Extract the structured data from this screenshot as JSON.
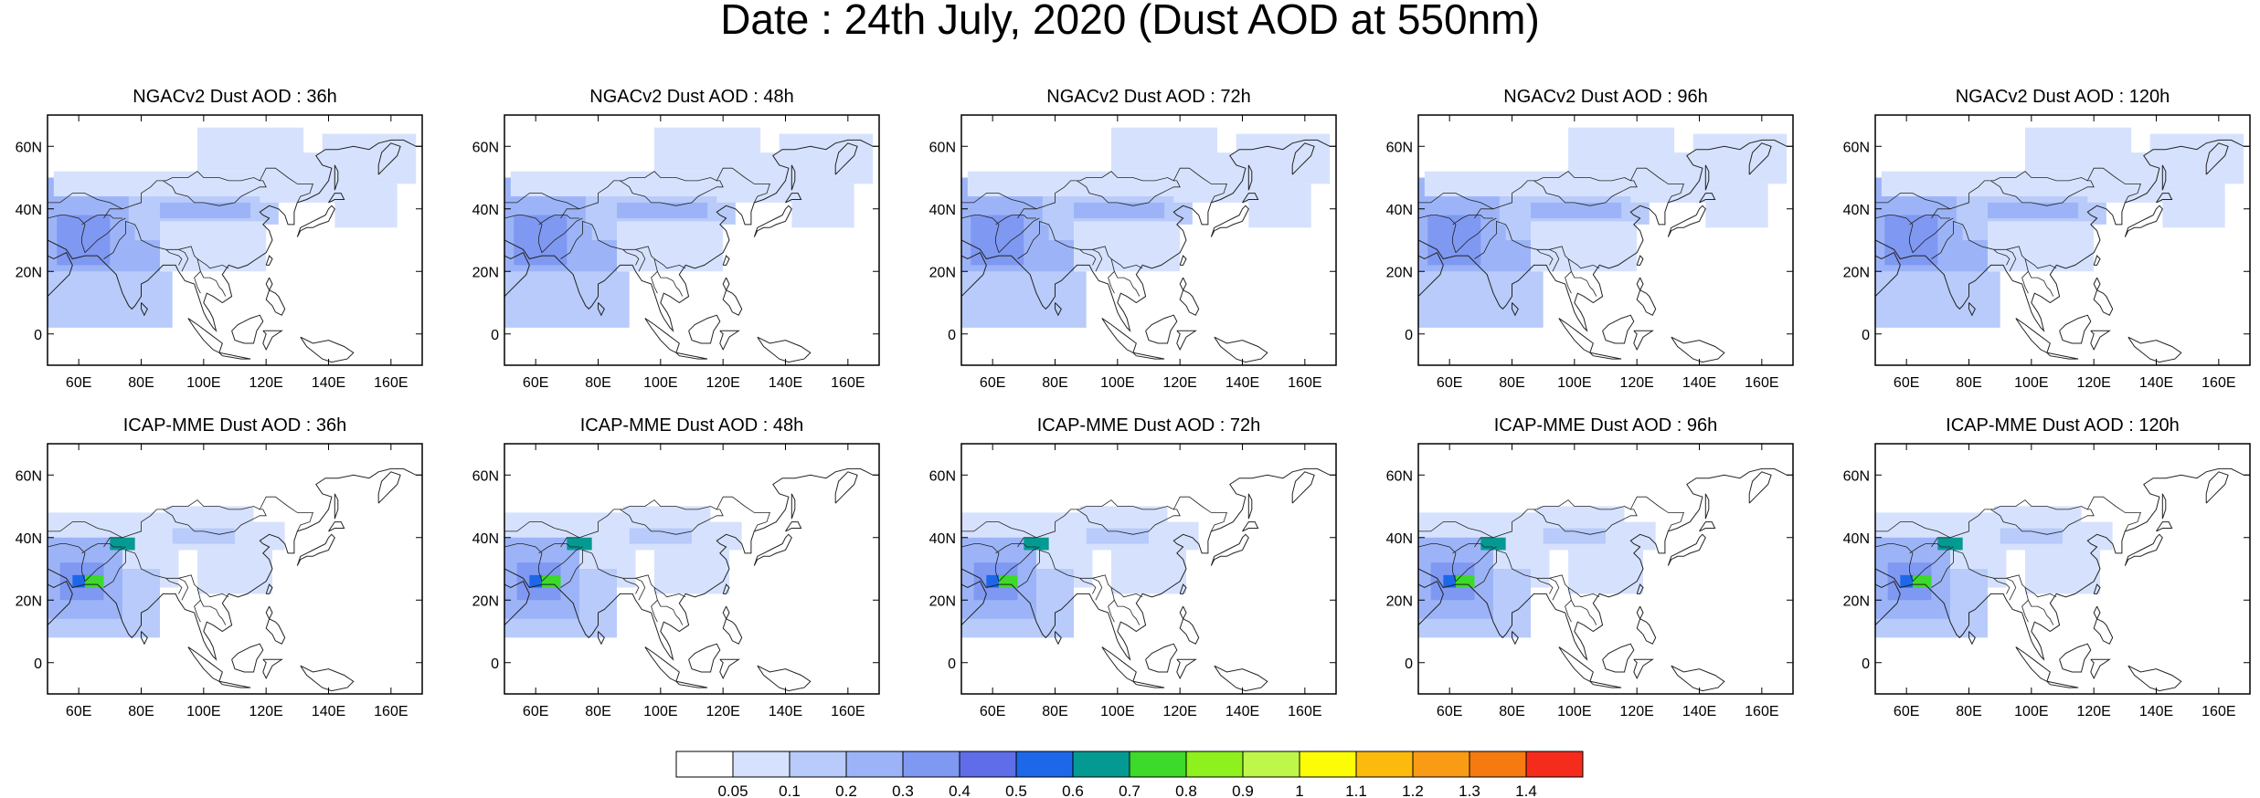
{
  "title": "Date : 24th July, 2020 (Dust AOD at 550nm)",
  "axes": {
    "y_ticks": [
      "60N",
      "40N",
      "20N",
      "0"
    ],
    "y_values": [
      60,
      40,
      20,
      0
    ],
    "x_ticks": [
      "60E",
      "80E",
      "100E",
      "120E",
      "140E",
      "160E"
    ],
    "x_values": [
      60,
      80,
      100,
      120,
      140,
      160
    ],
    "lon_range": [
      50,
      170
    ],
    "lat_range": [
      -10,
      70
    ]
  },
  "panels": [
    {
      "title": "NGACv2 Dust AOD : 36h",
      "model": "ngac",
      "lead": 36
    },
    {
      "title": "NGACv2 Dust AOD : 48h",
      "model": "ngac",
      "lead": 48
    },
    {
      "title": "NGACv2 Dust AOD : 72h",
      "model": "ngac",
      "lead": 72
    },
    {
      "title": "NGACv2 Dust AOD : 96h",
      "model": "ngac",
      "lead": 96
    },
    {
      "title": "NGACv2 Dust AOD : 120h",
      "model": "ngac",
      "lead": 120
    },
    {
      "title": "ICAP-MME Dust AOD : 36h",
      "model": "icap",
      "lead": 36
    },
    {
      "title": "ICAP-MME Dust AOD : 48h",
      "model": "icap",
      "lead": 48
    },
    {
      "title": "ICAP-MME Dust AOD : 72h",
      "model": "icap",
      "lead": 72
    },
    {
      "title": "ICAP-MME Dust AOD : 96h",
      "model": "icap",
      "lead": 96
    },
    {
      "title": "ICAP-MME Dust AOD : 120h",
      "model": "icap",
      "lead": 120
    }
  ],
  "colorbar": {
    "colors": [
      "#ffffff",
      "#d6e2fd",
      "#b8cbfa",
      "#9cb4f7",
      "#7f98f2",
      "#5f6ee8",
      "#1d68e8",
      "#049a92",
      "#3dd92b",
      "#8ef01c",
      "#bff64a",
      "#fcfc06",
      "#fcbb0c",
      "#f99b15",
      "#f57a10",
      "#f52c1c"
    ],
    "labels": [
      "0.05",
      "0.1",
      "0.2",
      "0.3",
      "0.4",
      "0.5",
      "0.6",
      "0.7",
      "0.8",
      "0.9",
      "1",
      "1.1",
      "1.2",
      "1.3",
      "1.4"
    ]
  },
  "regions": {
    "ngac": [
      {
        "lon": [
          50,
          86
        ],
        "lat": [
          18,
          50
        ],
        "level": 3
      },
      {
        "lon": [
          50,
          75
        ],
        "lat": [
          10,
          30
        ],
        "level": 3
      },
      {
        "lon": [
          53,
          70
        ],
        "lat": [
          22,
          38
        ],
        "level": 4
      },
      {
        "lon": [
          50,
          90
        ],
        "lat": [
          2,
          20
        ],
        "level": 2
      },
      {
        "lon": [
          76,
          124
        ],
        "lat": [
          35,
          45
        ],
        "level": 2
      },
      {
        "lon": [
          78,
          100
        ],
        "lat": [
          30,
          38
        ],
        "level": 2
      },
      {
        "lon": [
          86,
          115
        ],
        "lat": [
          37,
          42
        ],
        "level": 3
      },
      {
        "lon": [
          52,
          120
        ],
        "lat": [
          44,
          52
        ],
        "level": 1
      },
      {
        "lon": [
          86,
          120
        ],
        "lat": [
          20,
          36
        ],
        "level": 1
      },
      {
        "lon": [
          98,
          132
        ],
        "lat": [
          52,
          66
        ],
        "level": 1
      },
      {
        "lon": [
          118,
          142
        ],
        "lat": [
          42,
          58
        ],
        "level": 1
      },
      {
        "lon": [
          138,
          168
        ],
        "lat": [
          48,
          64
        ],
        "level": 1
      },
      {
        "lon": [
          142,
          162
        ],
        "lat": [
          34,
          48
        ],
        "level": 1
      }
    ],
    "icap": [
      {
        "lon": [
          50,
          92
        ],
        "lat": [
          24,
          48
        ],
        "level": 1
      },
      {
        "lon": [
          50,
          86
        ],
        "lat": [
          8,
          30
        ],
        "level": 2
      },
      {
        "lon": [
          50,
          74
        ],
        "lat": [
          14,
          40
        ],
        "level": 3
      },
      {
        "lon": [
          54,
          68
        ],
        "lat": [
          20,
          32
        ],
        "level": 4
      },
      {
        "lon": [
          58,
          64
        ],
        "lat": [
          24,
          28
        ],
        "level": 6
      },
      {
        "lon": [
          80,
          126
        ],
        "lat": [
          36,
          45
        ],
        "level": 1
      },
      {
        "lon": [
          90,
          110
        ],
        "lat": [
          38,
          43
        ],
        "level": 2
      },
      {
        "lon": [
          88,
          116
        ],
        "lat": [
          44,
          50
        ],
        "level": 1
      },
      {
        "lon": [
          98,
          122
        ],
        "lat": [
          22,
          36
        ],
        "level": 1
      },
      {
        "lon": [
          62,
          68
        ],
        "lat": [
          24,
          28
        ],
        "level": 8
      },
      {
        "lon": [
          70,
          78
        ],
        "lat": [
          36,
          40
        ],
        "level": 7
      }
    ]
  },
  "coastlines": [
    [
      [
        50,
        30
      ],
      [
        56,
        27
      ],
      [
        58,
        24
      ],
      [
        62,
        25
      ],
      [
        66,
        25
      ],
      [
        68,
        23
      ],
      [
        70,
        21
      ],
      [
        72,
        19
      ],
      [
        73,
        16
      ],
      [
        74,
        13
      ],
      [
        76,
        9
      ],
      [
        77,
        8
      ],
      [
        78,
        9
      ],
      [
        80,
        12
      ],
      [
        80,
        16
      ],
      [
        82,
        17
      ],
      [
        85,
        20
      ],
      [
        87,
        22
      ],
      [
        89,
        22
      ],
      [
        91,
        22
      ],
      [
        92,
        20
      ],
      [
        94,
        17
      ],
      [
        97,
        16
      ],
      [
        98,
        13
      ],
      [
        99,
        10
      ],
      [
        100,
        7
      ],
      [
        101,
        5
      ],
      [
        103,
        2
      ],
      [
        104,
        1
      ],
      [
        103,
        5
      ],
      [
        102,
        7
      ],
      [
        100,
        10
      ],
      [
        101,
        13
      ],
      [
        103,
        12
      ],
      [
        106,
        10
      ],
      [
        109,
        12
      ],
      [
        108,
        16
      ],
      [
        106,
        19
      ],
      [
        108,
        22
      ],
      [
        111,
        21
      ],
      [
        114,
        22
      ],
      [
        117,
        24
      ],
      [
        120,
        26
      ],
      [
        122,
        30
      ],
      [
        121,
        33
      ],
      [
        119,
        35
      ],
      [
        121,
        37
      ],
      [
        119,
        38
      ],
      [
        118,
        39
      ],
      [
        121,
        41
      ],
      [
        124,
        40
      ],
      [
        126,
        38
      ],
      [
        127,
        35
      ],
      [
        129,
        35
      ],
      [
        129,
        39
      ],
      [
        130,
        42
      ],
      [
        133,
        43
      ],
      [
        137,
        45
      ],
      [
        140,
        49
      ],
      [
        141,
        53
      ],
      [
        138,
        54
      ],
      [
        136,
        57
      ],
      [
        139,
        59
      ],
      [
        143,
        59
      ],
      [
        148,
        60
      ],
      [
        153,
        59
      ],
      [
        156,
        61
      ],
      [
        160,
        62
      ],
      [
        164,
        62
      ],
      [
        168,
        60
      ],
      [
        170,
        60
      ]
    ],
    [
      [
        50,
        12
      ],
      [
        52,
        14
      ],
      [
        55,
        17
      ],
      [
        57,
        19
      ],
      [
        58,
        22
      ],
      [
        57,
        24
      ],
      [
        56,
        26
      ],
      [
        54,
        25
      ],
      [
        52,
        24
      ],
      [
        50,
        25
      ]
    ],
    [
      [
        80,
        10
      ],
      [
        82,
        8
      ],
      [
        81,
        6
      ],
      [
        80,
        8
      ],
      [
        80,
        10
      ]
    ],
    [
      [
        95,
        5
      ],
      [
        98,
        3
      ],
      [
        102,
        0
      ],
      [
        106,
        -3
      ],
      [
        105,
        -6
      ],
      [
        103,
        -5
      ],
      [
        100,
        -2
      ],
      [
        97,
        2
      ],
      [
        95,
        5
      ]
    ],
    [
      [
        105,
        -6
      ],
      [
        110,
        -7
      ],
      [
        115,
        -8
      ],
      [
        112,
        -8
      ],
      [
        106,
        -7
      ],
      [
        105,
        -6
      ]
    ],
    [
      [
        109,
        1
      ],
      [
        111,
        3
      ],
      [
        115,
        5
      ],
      [
        118,
        6
      ],
      [
        119,
        4
      ],
      [
        117,
        1
      ],
      [
        116,
        -3
      ],
      [
        113,
        -3
      ],
      [
        110,
        -2
      ],
      [
        109,
        1
      ]
    ],
    [
      [
        119,
        1
      ],
      [
        121,
        1
      ],
      [
        125,
        1
      ],
      [
        122,
        -1
      ],
      [
        121,
        -3
      ],
      [
        120,
        -5
      ],
      [
        119,
        -3
      ],
      [
        120,
        0
      ],
      [
        119,
        1
      ]
    ],
    [
      [
        131,
        -1
      ],
      [
        135,
        -3
      ],
      [
        140,
        -2
      ],
      [
        145,
        -4
      ],
      [
        148,
        -6
      ],
      [
        146,
        -8
      ],
      [
        141,
        -9
      ],
      [
        138,
        -8
      ],
      [
        133,
        -4
      ],
      [
        131,
        -1
      ]
    ],
    [
      [
        120,
        22
      ],
      [
        121,
        25
      ],
      [
        122,
        24
      ],
      [
        121,
        22
      ],
      [
        120,
        22
      ]
    ],
    [
      [
        121,
        18
      ],
      [
        122,
        16
      ],
      [
        121,
        14
      ],
      [
        123,
        13
      ],
      [
        124,
        12
      ],
      [
        125,
        10
      ],
      [
        126,
        8
      ],
      [
        125,
        6
      ],
      [
        123,
        7
      ],
      [
        122,
        9
      ],
      [
        120,
        11
      ],
      [
        121,
        14
      ],
      [
        120,
        16
      ],
      [
        121,
        18
      ]
    ],
    [
      [
        130,
        31
      ],
      [
        131,
        33
      ],
      [
        133,
        34
      ],
      [
        135,
        34
      ],
      [
        137,
        35
      ],
      [
        140,
        36
      ],
      [
        141,
        38
      ],
      [
        142,
        40
      ],
      [
        141,
        41
      ],
      [
        140,
        40
      ],
      [
        139,
        38
      ],
      [
        137,
        37
      ],
      [
        135,
        36
      ],
      [
        133,
        35
      ],
      [
        131,
        34
      ],
      [
        130,
        31
      ]
    ],
    [
      [
        140,
        42
      ],
      [
        142,
        43
      ],
      [
        145,
        43
      ],
      [
        144,
        45
      ],
      [
        142,
        45
      ],
      [
        140,
        42
      ]
    ],
    [
      [
        142,
        46
      ],
      [
        143,
        49
      ],
      [
        143,
        52
      ],
      [
        142,
        54
      ],
      [
        142,
        50
      ],
      [
        142,
        46
      ]
    ],
    [
      [
        156,
        51
      ],
      [
        158,
        53
      ],
      [
        160,
        55
      ],
      [
        162,
        57
      ],
      [
        163,
        60
      ],
      [
        160,
        61
      ],
      [
        157,
        58
      ],
      [
        156,
        54
      ],
      [
        156,
        51
      ]
    ]
  ],
  "boundaries": [
    [
      [
        50,
        37
      ],
      [
        54,
        38
      ],
      [
        56,
        38
      ],
      [
        60,
        37
      ],
      [
        62,
        35
      ],
      [
        61,
        31
      ],
      [
        61,
        29
      ],
      [
        62,
        26
      ]
    ],
    [
      [
        61,
        35
      ],
      [
        64,
        37
      ],
      [
        66,
        38
      ],
      [
        70,
        38
      ],
      [
        71,
        37
      ],
      [
        74,
        37
      ]
    ],
    [
      [
        62,
        26
      ],
      [
        66,
        30
      ],
      [
        69,
        32
      ],
      [
        71,
        34
      ],
      [
        73,
        36
      ],
      [
        75,
        37
      ]
    ],
    [
      [
        68,
        24
      ],
      [
        71,
        26
      ],
      [
        73,
        30
      ],
      [
        75,
        32
      ],
      [
        75,
        36
      ],
      [
        78,
        35
      ],
      [
        79,
        33
      ]
    ],
    [
      [
        50,
        42
      ],
      [
        54,
        42
      ],
      [
        58,
        45
      ],
      [
        62,
        45
      ],
      [
        66,
        43
      ],
      [
        70,
        42
      ],
      [
        74,
        40
      ],
      [
        77,
        41
      ],
      [
        80,
        42
      ],
      [
        80,
        45
      ],
      [
        83,
        47
      ],
      [
        85,
        49
      ],
      [
        88,
        49
      ],
      [
        90,
        50
      ],
      [
        95,
        50
      ],
      [
        98,
        52
      ],
      [
        100,
        50
      ],
      [
        105,
        50
      ],
      [
        108,
        49
      ],
      [
        112,
        49
      ],
      [
        116,
        50
      ],
      [
        118,
        49
      ],
      [
        120,
        53
      ],
      [
        123,
        53
      ],
      [
        127,
        50
      ],
      [
        130,
        48
      ],
      [
        133,
        48
      ],
      [
        135,
        48
      ],
      [
        134,
        45
      ],
      [
        131,
        44
      ],
      [
        130,
        42
      ]
    ],
    [
      [
        74,
        40
      ],
      [
        70,
        40
      ],
      [
        68,
        37
      ]
    ],
    [
      [
        79,
        33
      ],
      [
        80,
        30
      ],
      [
        84,
        28
      ],
      [
        88,
        27
      ],
      [
        92,
        27
      ],
      [
        96,
        28
      ],
      [
        97,
        25
      ],
      [
        98,
        24
      ],
      [
        101,
        22
      ],
      [
        102,
        21
      ],
      [
        106,
        22
      ],
      [
        108,
        21
      ]
    ],
    [
      [
        88,
        27
      ],
      [
        89,
        26
      ],
      [
        92,
        25
      ],
      [
        93,
        24
      ],
      [
        92,
        22
      ]
    ],
    [
      [
        92,
        27
      ],
      [
        94,
        26
      ],
      [
        95,
        24
      ],
      [
        94,
        22
      ],
      [
        93,
        20
      ]
    ],
    [
      [
        98,
        24
      ],
      [
        99,
        20
      ],
      [
        100,
        18
      ],
      [
        102,
        18
      ],
      [
        104,
        17
      ],
      [
        105,
        15
      ],
      [
        106,
        14
      ],
      [
        107,
        12
      ]
    ],
    [
      [
        99,
        20
      ],
      [
        97,
        18
      ],
      [
        98,
        15
      ],
      [
        99,
        13
      ]
    ],
    [
      [
        87,
        49
      ],
      [
        90,
        47
      ],
      [
        91,
        45
      ],
      [
        95,
        44
      ],
      [
        97,
        42
      ],
      [
        100,
        42
      ],
      [
        105,
        41
      ],
      [
        110,
        42
      ],
      [
        112,
        44
      ],
      [
        114,
        45
      ],
      [
        116,
        46
      ],
      [
        118,
        47
      ],
      [
        120,
        47
      ],
      [
        119,
        49
      ],
      [
        118,
        49
      ]
    ]
  ]
}
